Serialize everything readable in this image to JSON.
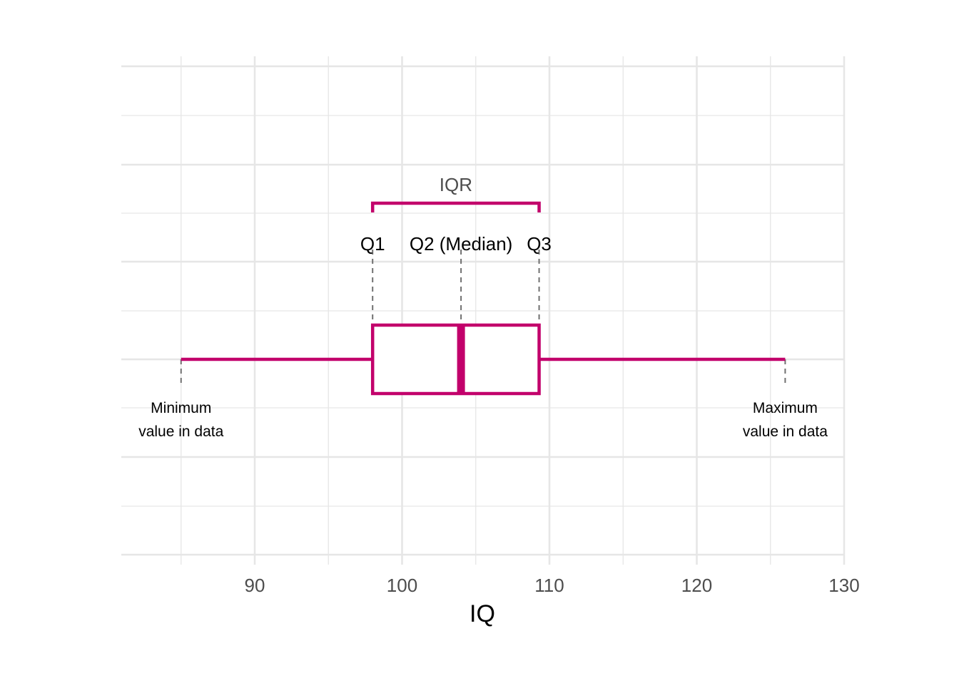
{
  "chart_data": {
    "type": "boxplot",
    "title": "",
    "xlabel": "IQ",
    "ylabel": "",
    "xlim": [
      81,
      130
    ],
    "x_ticks": [
      90,
      100,
      110,
      120,
      130
    ],
    "x_tick_labels": [
      "90",
      "100",
      "110",
      "120",
      "130"
    ],
    "grid": true,
    "legend": "none",
    "box": {
      "min": 85,
      "q1": 98,
      "median": 104,
      "q3": 109.3,
      "max": 126
    },
    "annotations": {
      "iqr": "IQR",
      "q1": "Q1",
      "median": "Q2 (Median)",
      "q3": "Q3",
      "min_line1": "Minimum",
      "min_line2": "value in data",
      "max_line1": "Maximum",
      "max_line2": "value in data"
    },
    "colors": {
      "box": "#c2006b",
      "grid": "#e6e6e6",
      "guide": "#707070",
      "tick_text": "#4d4d4d"
    }
  }
}
